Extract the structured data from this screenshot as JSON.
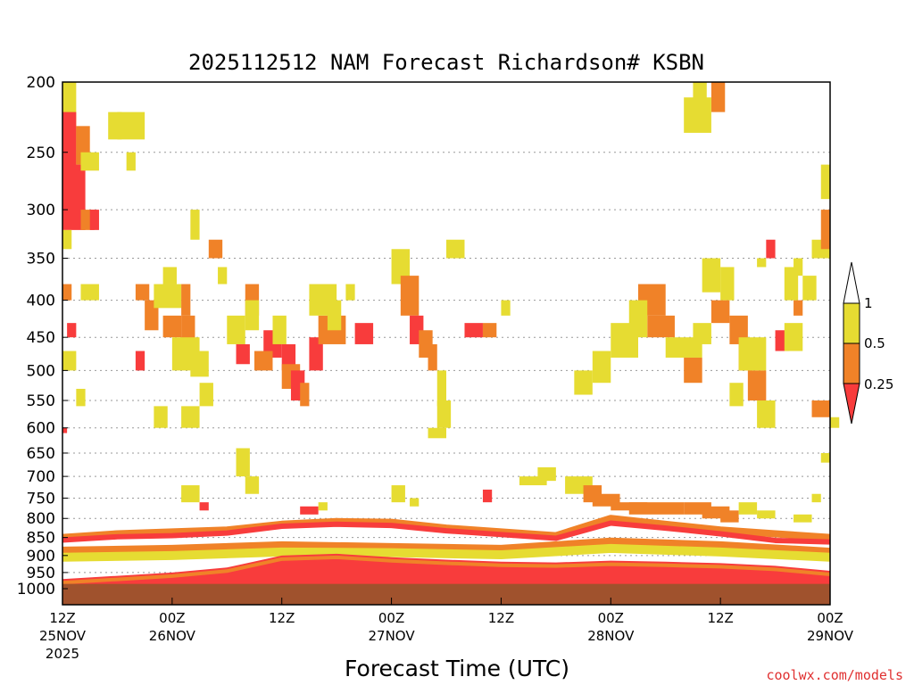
{
  "chart_data": {
    "type": "heatmap",
    "title": "2025112512 NAM Forecast Richardson# KSBN",
    "xlabel": "Forecast Time (UTC)",
    "credit": "coolwx.com/models",
    "y_axis": {
      "scale": "pressure (inverted)",
      "range": [
        1030,
        200
      ],
      "ticks": [
        200,
        250,
        300,
        350,
        400,
        450,
        500,
        550,
        600,
        650,
        700,
        750,
        800,
        850,
        900,
        950,
        1000
      ],
      "grid": true
    },
    "x_axis": {
      "range_hours": [
        0,
        84
      ],
      "ticks": [
        {
          "hour": 0,
          "label": "12Z",
          "sub": "25NOV",
          "sub2": "2025"
        },
        {
          "hour": 12,
          "label": "00Z",
          "sub": "26NOV",
          "sub2": ""
        },
        {
          "hour": 24,
          "label": "12Z",
          "sub": "",
          "sub2": ""
        },
        {
          "hour": 36,
          "label": "00Z",
          "sub": "27NOV",
          "sub2": ""
        },
        {
          "hour": 48,
          "label": "12Z",
          "sub": "",
          "sub2": ""
        },
        {
          "hour": 60,
          "label": "00Z",
          "sub": "28NOV",
          "sub2": ""
        },
        {
          "hour": 72,
          "label": "12Z",
          "sub": "",
          "sub2": ""
        },
        {
          "hour": 84,
          "label": "00Z",
          "sub": "29NOV",
          "sub2": ""
        }
      ]
    },
    "legend": {
      "placement": "right",
      "levels": [
        "1",
        "0.5",
        "0.25"
      ],
      "colors": {
        "lt_0.25": "#f83c3c",
        "0.25_0.5": "#f08228",
        "0.5_1": "#e6dc32",
        "gt_1": "#ffffff"
      }
    },
    "surface_color": "#a0522d",
    "cell_hours": 1.5,
    "cells": [
      [
        0,
        200,
        1.5,
        270,
        "y"
      ],
      [
        0,
        220,
        1.5,
        290,
        "r"
      ],
      [
        1.5,
        230,
        1.5,
        260,
        "o"
      ],
      [
        0,
        260,
        2.5,
        320,
        "r"
      ],
      [
        2,
        300,
        1.5,
        320,
        "o"
      ],
      [
        3,
        300,
        1,
        320,
        "r"
      ],
      [
        0,
        320,
        1,
        340,
        "y"
      ],
      [
        2,
        250,
        2,
        265,
        "y"
      ],
      [
        5,
        220,
        1.5,
        240,
        "y"
      ],
      [
        6,
        220,
        3,
        240,
        "y"
      ],
      [
        7,
        250,
        1,
        265,
        "y"
      ],
      [
        0,
        380,
        1,
        400,
        "o"
      ],
      [
        0.5,
        430,
        1,
        450,
        "r"
      ],
      [
        0,
        470,
        1.5,
        500,
        "y"
      ],
      [
        2,
        380,
        2,
        400,
        "y"
      ],
      [
        1.5,
        530,
        1,
        560,
        "y"
      ],
      [
        0,
        600,
        0.5,
        610,
        "r"
      ],
      [
        8,
        380,
        1.5,
        400,
        "o"
      ],
      [
        9,
        400,
        1.5,
        440,
        "o"
      ],
      [
        10,
        380,
        3,
        410,
        "y"
      ],
      [
        11,
        360,
        1.5,
        380,
        "y"
      ],
      [
        11,
        420,
        2,
        450,
        "o"
      ],
      [
        13,
        380,
        1,
        420,
        "o"
      ],
      [
        13,
        420,
        1.5,
        460,
        "o"
      ],
      [
        12,
        450,
        3,
        500,
        "y"
      ],
      [
        14,
        470,
        2,
        510,
        "y"
      ],
      [
        8,
        470,
        1,
        500,
        "r"
      ],
      [
        10,
        560,
        1.5,
        600,
        "y"
      ],
      [
        13,
        560,
        2,
        600,
        "y"
      ],
      [
        15,
        520,
        1.5,
        560,
        "y"
      ],
      [
        14,
        300,
        1,
        330,
        "y"
      ],
      [
        16,
        330,
        1.5,
        350,
        "o"
      ],
      [
        17,
        360,
        1,
        380,
        "y"
      ],
      [
        18,
        420,
        2,
        460,
        "y"
      ],
      [
        19,
        460,
        1.5,
        490,
        "r"
      ],
      [
        20,
        380,
        1.5,
        420,
        "o"
      ],
      [
        20,
        400,
        1.5,
        440,
        "y"
      ],
      [
        22,
        440,
        2,
        480,
        "r"
      ],
      [
        21,
        470,
        2,
        500,
        "o"
      ],
      [
        23,
        420,
        1.5,
        460,
        "y"
      ],
      [
        24,
        460,
        1.5,
        500,
        "r"
      ],
      [
        24,
        490,
        2,
        530,
        "o"
      ],
      [
        25,
        500,
        1.5,
        550,
        "r"
      ],
      [
        26,
        520,
        1,
        560,
        "o"
      ],
      [
        27,
        450,
        1.5,
        500,
        "r"
      ],
      [
        28,
        420,
        3,
        460,
        "o"
      ],
      [
        27,
        380,
        3,
        420,
        "y"
      ],
      [
        29,
        400,
        1.5,
        440,
        "y"
      ],
      [
        31,
        380,
        1,
        400,
        "y"
      ],
      [
        32,
        430,
        2,
        460,
        "r"
      ],
      [
        36,
        340,
        2,
        380,
        "y"
      ],
      [
        37,
        370,
        2,
        420,
        "o"
      ],
      [
        38,
        420,
        1.5,
        460,
        "r"
      ],
      [
        39,
        440,
        1.5,
        480,
        "o"
      ],
      [
        40,
        460,
        1,
        500,
        "o"
      ],
      [
        41,
        500,
        1,
        560,
        "y"
      ],
      [
        40,
        600,
        2,
        620,
        "y"
      ],
      [
        42,
        330,
        2,
        350,
        "y"
      ],
      [
        44,
        430,
        2,
        450,
        "r"
      ],
      [
        46,
        430,
        1.5,
        450,
        "o"
      ],
      [
        48,
        400,
        1,
        420,
        "y"
      ],
      [
        41,
        550,
        1.5,
        600,
        "y"
      ],
      [
        63,
        380,
        3,
        420,
        "o"
      ],
      [
        64,
        420,
        3,
        450,
        "o"
      ],
      [
        62,
        400,
        2,
        450,
        "y"
      ],
      [
        60,
        430,
        3,
        480,
        "y"
      ],
      [
        58,
        470,
        2,
        520,
        "y"
      ],
      [
        56,
        500,
        2,
        540,
        "y"
      ],
      [
        66,
        450,
        4,
        480,
        "y"
      ],
      [
        68,
        480,
        2,
        520,
        "o"
      ],
      [
        69,
        430,
        2,
        460,
        "y"
      ],
      [
        70,
        350,
        2,
        390,
        "y"
      ],
      [
        71,
        400,
        2,
        430,
        "o"
      ],
      [
        72,
        360,
        1.5,
        400,
        "y"
      ],
      [
        73,
        420,
        2,
        460,
        "o"
      ],
      [
        74,
        460,
        1.5,
        500,
        "o"
      ],
      [
        75,
        500,
        2,
        550,
        "o"
      ],
      [
        74,
        450,
        3,
        500,
        "y"
      ],
      [
        73,
        520,
        1.5,
        560,
        "y"
      ],
      [
        76,
        550,
        2,
        600,
        "y"
      ],
      [
        78,
        440,
        1.5,
        470,
        "r"
      ],
      [
        79,
        430,
        2,
        470,
        "y"
      ],
      [
        80,
        400,
        1,
        420,
        "o"
      ],
      [
        79,
        360,
        1.5,
        400,
        "y"
      ],
      [
        81,
        370,
        1.5,
        400,
        "y"
      ],
      [
        69,
        200,
        1.5,
        220,
        "y"
      ],
      [
        71,
        200,
        1.5,
        220,
        "o"
      ],
      [
        68,
        210,
        3,
        235,
        "y"
      ],
      [
        77,
        330,
        1,
        350,
        "r"
      ],
      [
        76,
        350,
        1,
        360,
        "y"
      ],
      [
        80,
        350,
        1,
        370,
        "y"
      ],
      [
        82,
        330,
        2,
        350,
        "y"
      ],
      [
        83,
        300,
        1,
        340,
        "o"
      ],
      [
        83,
        260,
        1,
        290,
        "y"
      ],
      [
        82,
        550,
        2,
        580,
        "o"
      ],
      [
        84,
        580,
        1,
        600,
        "y"
      ],
      [
        83,
        650,
        1,
        670,
        "y"
      ],
      [
        13,
        720,
        2,
        760,
        "y"
      ],
      [
        15,
        760,
        1,
        780,
        "r"
      ],
      [
        19,
        640,
        1.5,
        700,
        "y"
      ],
      [
        20,
        700,
        1.5,
        740,
        "y"
      ],
      [
        26,
        770,
        2,
        790,
        "r"
      ],
      [
        28,
        760,
        1,
        780,
        "y"
      ],
      [
        36,
        720,
        1.5,
        760,
        "y"
      ],
      [
        38,
        750,
        1,
        770,
        "y"
      ],
      [
        46,
        730,
        1,
        760,
        "r"
      ],
      [
        50,
        700,
        3,
        720,
        "y"
      ],
      [
        52,
        680,
        2,
        710,
        "y"
      ],
      [
        55,
        700,
        3,
        740,
        "y"
      ],
      [
        57,
        720,
        2,
        760,
        "o"
      ],
      [
        58,
        740,
        3,
        770,
        "o"
      ],
      [
        60,
        760,
        4,
        780,
        "o"
      ],
      [
        62,
        760,
        6,
        790,
        "o"
      ],
      [
        68,
        760,
        3,
        790,
        "o"
      ],
      [
        70,
        770,
        3,
        800,
        "o"
      ],
      [
        72,
        780,
        2,
        810,
        "o"
      ],
      [
        74,
        760,
        2,
        790,
        "y"
      ],
      [
        76,
        780,
        2,
        800,
        "y"
      ],
      [
        80,
        790,
        2,
        810,
        "y"
      ],
      [
        82,
        740,
        1,
        760,
        "y"
      ]
    ],
    "bands": [
      {
        "color": "o",
        "points": [
          [
            0,
            850
          ],
          [
            6,
            840
          ],
          [
            12,
            835
          ],
          [
            18,
            830
          ],
          [
            24,
            815
          ],
          [
            30,
            808
          ],
          [
            36,
            810
          ],
          [
            42,
            825
          ],
          [
            48,
            835
          ],
          [
            54,
            845
          ],
          [
            60,
            800
          ],
          [
            66,
            815
          ],
          [
            72,
            830
          ],
          [
            78,
            840
          ],
          [
            84,
            850
          ]
        ],
        "thickness": 8
      },
      {
        "color": "r",
        "points": [
          [
            0,
            857
          ],
          [
            6,
            848
          ],
          [
            12,
            845
          ],
          [
            18,
            838
          ],
          [
            24,
            820
          ],
          [
            30,
            815
          ],
          [
            36,
            818
          ],
          [
            42,
            832
          ],
          [
            48,
            842
          ],
          [
            54,
            852
          ],
          [
            60,
            812
          ],
          [
            66,
            825
          ],
          [
            72,
            840
          ],
          [
            78,
            858
          ],
          [
            84,
            862
          ]
        ],
        "thickness": 6
      },
      {
        "color": "o",
        "points": [
          [
            0,
            885
          ],
          [
            12,
            880
          ],
          [
            24,
            870
          ],
          [
            36,
            875
          ],
          [
            48,
            880
          ],
          [
            60,
            860
          ],
          [
            72,
            870
          ],
          [
            84,
            888
          ]
        ],
        "thickness": 8
      },
      {
        "color": "y",
        "points": [
          [
            0,
            905
          ],
          [
            12,
            900
          ],
          [
            24,
            890
          ],
          [
            36,
            892
          ],
          [
            48,
            898
          ],
          [
            60,
            880
          ],
          [
            72,
            890
          ],
          [
            84,
            905
          ]
        ],
        "thickness": 10
      }
    ],
    "pbl": {
      "top_points": [
        [
          0,
          970
        ],
        [
          6,
          960
        ],
        [
          12,
          950
        ],
        [
          18,
          935
        ],
        [
          24,
          900
        ],
        [
          30,
          895
        ],
        [
          36,
          905
        ],
        [
          42,
          912
        ],
        [
          48,
          918
        ],
        [
          54,
          920
        ],
        [
          60,
          915
        ],
        [
          66,
          918
        ],
        [
          72,
          922
        ],
        [
          78,
          930
        ],
        [
          84,
          945
        ]
      ],
      "bottom": 1000
    },
    "surface_top": 985
  }
}
